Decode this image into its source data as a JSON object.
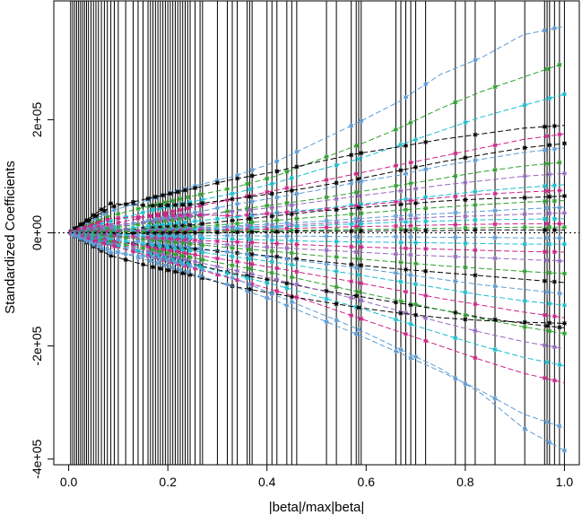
{
  "chart_data": {
    "type": "line",
    "title": "",
    "xlabel": "|beta|/max|beta|",
    "ylabel": "Standardized Coefficients",
    "xlim": [
      -0.03,
      1.03
    ],
    "ylim": [
      -410000,
      410000
    ],
    "x_ticks": [
      0.0,
      0.2,
      0.4,
      0.6,
      0.8,
      1.0
    ],
    "x_tick_labels": [
      "0.0",
      "0.2",
      "0.4",
      "0.6",
      "0.8",
      "1.0"
    ],
    "y_ticks": [
      -400000,
      -200000,
      0,
      200000
    ],
    "y_tick_labels": [
      "-4e+05",
      "-2e+05",
      "0e+00",
      "2e+05"
    ],
    "zero_line": {
      "y": 0,
      "style": "dotted"
    },
    "grid": false,
    "legend": "none",
    "breakpoints": [
      0.004,
      0.008,
      0.012,
      0.016,
      0.02,
      0.024,
      0.028,
      0.032,
      0.036,
      0.04,
      0.045,
      0.05,
      0.055,
      0.06,
      0.066,
      0.072,
      0.078,
      0.085,
      0.092,
      0.1,
      0.115,
      0.13,
      0.14,
      0.15,
      0.16,
      0.165,
      0.17,
      0.175,
      0.18,
      0.185,
      0.19,
      0.195,
      0.2,
      0.205,
      0.21,
      0.215,
      0.22,
      0.225,
      0.23,
      0.235,
      0.24,
      0.245,
      0.255,
      0.265,
      0.27,
      0.3,
      0.32,
      0.33,
      0.34,
      0.36,
      0.365,
      0.37,
      0.4,
      0.41,
      0.42,
      0.44,
      0.45,
      0.46,
      0.52,
      0.54,
      0.57,
      0.58,
      0.585,
      0.59,
      0.66,
      0.67,
      0.68,
      0.69,
      0.7,
      0.72,
      0.78,
      0.8,
      0.82,
      0.86,
      0.92,
      0.96,
      0.965,
      0.97,
      0.98,
      0.99,
      1.0
    ],
    "series": [
      {
        "color": "#5b9bd5",
        "values": [
          0,
          38000,
          60000,
          82000,
          100000,
          125000,
          160000,
          195000,
          232000,
          280000,
          310000,
          350000,
          365000
        ]
      },
      {
        "color": "#2ca02c",
        "values": [
          0,
          30000,
          48000,
          65000,
          80000,
          100000,
          128000,
          155000,
          185000,
          220000,
          250000,
          275000,
          300000
        ]
      },
      {
        "color": "#17becf",
        "values": [
          0,
          20000,
          40000,
          55000,
          70000,
          88000,
          110000,
          130000,
          155000,
          180000,
          205000,
          225000,
          245000
        ]
      },
      {
        "color": "#000000",
        "values": [
          0,
          45000,
          62000,
          78000,
          95000,
          108000,
          125000,
          140000,
          152000,
          165000,
          175000,
          185000,
          190000
        ]
      },
      {
        "color": "#cc2288",
        "values": [
          0,
          15000,
          30000,
          45000,
          60000,
          75000,
          90000,
          105000,
          120000,
          135000,
          150000,
          165000,
          175000
        ]
      },
      {
        "color": "#000000",
        "values": [
          0,
          52000,
          48000,
          50000,
          60000,
          70000,
          82000,
          95000,
          110000,
          125000,
          138000,
          150000,
          158000
        ]
      },
      {
        "color": "#5b9bd5",
        "values": [
          0,
          10000,
          22000,
          35000,
          50000,
          62000,
          75000,
          90000,
          102000,
          118000,
          130000,
          142000,
          150000
        ]
      },
      {
        "color": "#2ca02c",
        "values": [
          0,
          8000,
          18000,
          28000,
          40000,
          50000,
          60000,
          72000,
          84000,
          96000,
          108000,
          118000,
          125000
        ]
      },
      {
        "color": "#9467bd",
        "values": [
          0,
          12000,
          20000,
          30000,
          38000,
          45000,
          55000,
          65000,
          74000,
          84000,
          92000,
          100000,
          105000
        ]
      },
      {
        "color": "#17becf",
        "values": [
          0,
          5000,
          12000,
          20000,
          28000,
          35000,
          42000,
          50000,
          58000,
          66000,
          74000,
          80000,
          85000
        ]
      },
      {
        "color": "#cc2288",
        "values": [
          0,
          25000,
          30000,
          32000,
          30000,
          35000,
          40000,
          48000,
          55000,
          62000,
          68000,
          72000,
          75000
        ]
      },
      {
        "color": "#000000",
        "values": [
          0,
          4000,
          8000,
          14000,
          22000,
          30000,
          38000,
          44000,
          50000,
          56000,
          60000,
          62000,
          65000
        ]
      },
      {
        "color": "#2ca02c",
        "values": [
          0,
          3000,
          6000,
          10000,
          16000,
          22000,
          28000,
          34000,
          40000,
          45000,
          50000,
          54000,
          57000
        ]
      },
      {
        "color": "#5b9bd5",
        "values": [
          0,
          2000,
          5000,
          8000,
          12000,
          16000,
          20000,
          25000,
          30000,
          34000,
          38000,
          42000,
          45000
        ]
      },
      {
        "color": "#9467bd",
        "values": [
          0,
          6000,
          4000,
          6000,
          10000,
          12000,
          16000,
          20000,
          24000,
          28000,
          30000,
          33000,
          35000
        ]
      },
      {
        "color": "#17becf",
        "values": [
          0,
          1000,
          3000,
          5000,
          7000,
          10000,
          13000,
          16000,
          19000,
          21000,
          23000,
          24000,
          25000
        ]
      },
      {
        "color": "#cc2288",
        "values": [
          0,
          2000,
          2000,
          4000,
          5000,
          7000,
          9000,
          11000,
          12000,
          14000,
          15000,
          16000,
          16000
        ]
      },
      {
        "color": "#2ca02c",
        "values": [
          0,
          1000,
          1500,
          2000,
          3000,
          4000,
          5000,
          6000,
          7000,
          8000,
          9000,
          10000,
          10000
        ]
      },
      {
        "color": "#000000",
        "values": [
          0,
          -2000,
          -1000,
          0,
          1000,
          2000,
          3000,
          3000,
          4000,
          4000,
          5000,
          5000,
          5000
        ]
      },
      {
        "color": "#5b9bd5",
        "values": [
          0,
          -3000,
          -4000,
          -5000,
          -5000,
          -6000,
          -6000,
          -7000,
          -7000,
          -8000,
          -8000,
          -9000,
          -9000
        ]
      },
      {
        "color": "#17becf",
        "values": [
          0,
          -4000,
          -7000,
          -9000,
          -11000,
          -13000,
          -15000,
          -16000,
          -17000,
          -18000,
          -19000,
          -20000,
          -20000
        ]
      },
      {
        "color": "#cc2288",
        "values": [
          0,
          -5000,
          -9000,
          -13000,
          -16000,
          -19000,
          -22000,
          -25000,
          -27000,
          -29000,
          -31000,
          -33000,
          -34000
        ]
      },
      {
        "color": "#9467bd",
        "values": [
          0,
          -8000,
          -12000,
          -17000,
          -22000,
          -26000,
          -30000,
          -34000,
          -38000,
          -41000,
          -44000,
          -47000,
          -50000
        ]
      },
      {
        "color": "#2ca02c",
        "values": [
          0,
          -6000,
          -13000,
          -20000,
          -27000,
          -33000,
          -40000,
          -46000,
          -52000,
          -58000,
          -63000,
          -68000,
          -72000
        ]
      },
      {
        "color": "#000000",
        "values": [
          0,
          -15000,
          -22000,
          -28000,
          -35000,
          -42000,
          -50000,
          -57000,
          -64000,
          -70000,
          -76000,
          -82000,
          -88000
        ]
      },
      {
        "color": "#5b9bd5",
        "values": [
          0,
          -10000,
          -18000,
          -26000,
          -35000,
          -44000,
          -53000,
          -62000,
          -72000,
          -82000,
          -92000,
          -100000,
          -108000
        ]
      },
      {
        "color": "#17becf",
        "values": [
          0,
          -12000,
          -22000,
          -32000,
          -42000,
          -52000,
          -63000,
          -74000,
          -86000,
          -98000,
          -110000,
          -120000,
          -128000
        ]
      },
      {
        "color": "#cc2288",
        "values": [
          0,
          -14000,
          -26000,
          -38000,
          -50000,
          -62000,
          -75000,
          -88000,
          -102000,
          -116000,
          -128000,
          -140000,
          -150000
        ]
      },
      {
        "color": "#000000",
        "values": [
          0,
          -20000,
          -38000,
          -55000,
          -72000,
          -85000,
          -100000,
          -112000,
          -124000,
          -136000,
          -150000,
          -160000,
          -168000
        ]
      },
      {
        "color": "#2ca02c",
        "values": [
          0,
          -16000,
          -30000,
          -44000,
          -58000,
          -72000,
          -88000,
          -104000,
          -120000,
          -136000,
          -152000,
          -166000,
          -178000
        ]
      },
      {
        "color": "#9467bd",
        "values": [
          0,
          -18000,
          -34000,
          -50000,
          -66000,
          -82000,
          -100000,
          -118000,
          -138000,
          -158000,
          -176000,
          -192000,
          -205000
        ]
      },
      {
        "color": "#17becf",
        "values": [
          0,
          -20000,
          -38000,
          -56000,
          -74000,
          -92000,
          -112000,
          -132000,
          -155000,
          -178000,
          -200000,
          -220000,
          -235000
        ]
      },
      {
        "color": "#000000",
        "values": [
          0,
          -40000,
          -60000,
          -75000,
          -95000,
          -108000,
          -120000,
          -132000,
          -142000,
          -150000,
          -155000,
          -158000,
          -160000
        ]
      },
      {
        "color": "#cc2288",
        "values": [
          0,
          -22000,
          -42000,
          -62000,
          -82000,
          -102000,
          -125000,
          -150000,
          -175000,
          -200000,
          -225000,
          -248000,
          -265000
        ]
      },
      {
        "color": "#5b9bd5",
        "values": [
          0,
          -30000,
          -50000,
          -72000,
          -95000,
          -120000,
          -150000,
          -180000,
          -212000,
          -245000,
          -280000,
          -320000,
          -345000
        ]
      },
      {
        "color": "#5b9bd5",
        "values": [
          0,
          -35000,
          -42000,
          -60000,
          -80000,
          -110000,
          -140000,
          -170000,
          -205000,
          -240000,
          -285000,
          -345000,
          -385000
        ]
      }
    ]
  }
}
